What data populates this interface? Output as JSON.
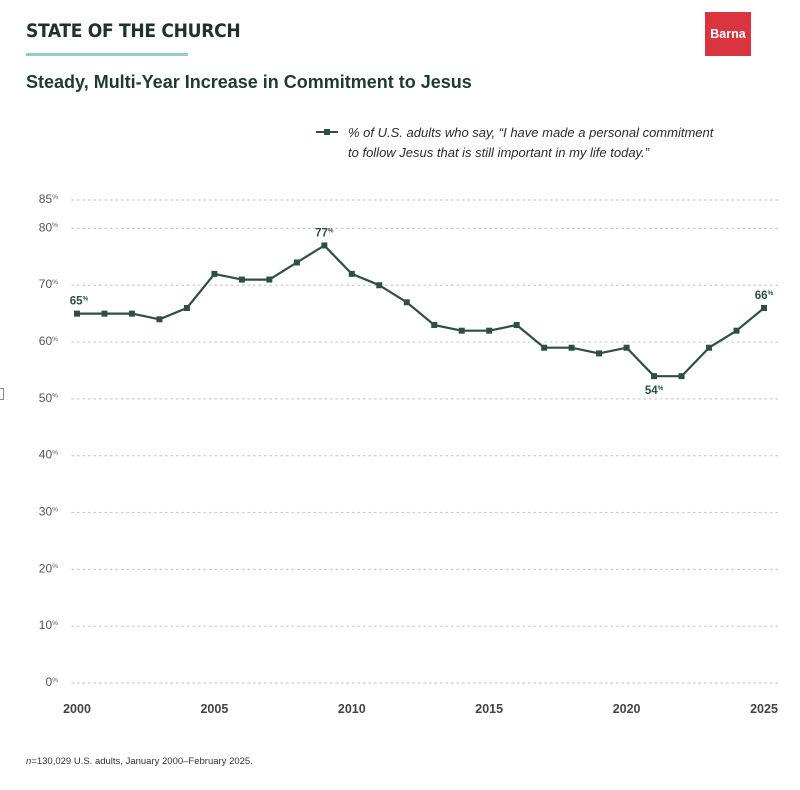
{
  "header": {
    "label": "STATE OF THE CHURCH",
    "rule_color": "#8ecfc7"
  },
  "logo": {
    "text": "Barna",
    "color": "#d9343f"
  },
  "chart_data": {
    "type": "line",
    "title": "Steady, Multi-Year Increase in Commitment to Jesus",
    "xlabel": "",
    "ylabel": "",
    "x_ticks": [
      "2000",
      "2005",
      "2010",
      "2015",
      "2020",
      "2025"
    ],
    "y_ticks": [
      0,
      10,
      20,
      30,
      40,
      50,
      60,
      70,
      80,
      85
    ],
    "y_tick_suffix": "%",
    "ylim": [
      0,
      85
    ],
    "xlim": [
      2000,
      2025
    ],
    "grid": true,
    "legend_placement": "top-right",
    "color": "#2e4f45",
    "grid_color": "#c9c9c9",
    "series": [
      {
        "name": "% of U.S. adults who say, “I have made a personal commitment to follow Jesus that is still important in my life today.”",
        "x": [
          2000,
          2001,
          2002,
          2003,
          2004,
          2005,
          2006,
          2007,
          2008,
          2009,
          2010,
          2011,
          2012,
          2013,
          2014,
          2015,
          2016,
          2017,
          2018,
          2019,
          2020,
          2021,
          2022,
          2023,
          2024,
          2025
        ],
        "values": [
          65,
          65,
          65,
          64,
          66,
          72,
          71,
          71,
          74,
          77,
          72,
          70,
          67,
          63,
          62,
          62,
          63,
          59,
          59,
          58,
          59,
          54,
          54,
          59,
          62,
          66
        ]
      }
    ],
    "annotations": [
      {
        "x": 2000,
        "y": 65,
        "text": "65%",
        "position": "above"
      },
      {
        "x": 2009,
        "y": 77,
        "text": "77%",
        "position": "above"
      },
      {
        "x": 2021,
        "y": 54,
        "text": "54%",
        "position": "below"
      },
      {
        "x": 2025,
        "y": 66,
        "text": "66%",
        "position": "above"
      }
    ]
  },
  "legend": {
    "line1": "% of U.S. adults who say, “I have made a personal commitment",
    "line2": "to follow Jesus that is still important in my life today.”"
  },
  "footnote": {
    "n_label": "n",
    "text": "=130,029 U.S. adults, January 2000–February 2025."
  }
}
